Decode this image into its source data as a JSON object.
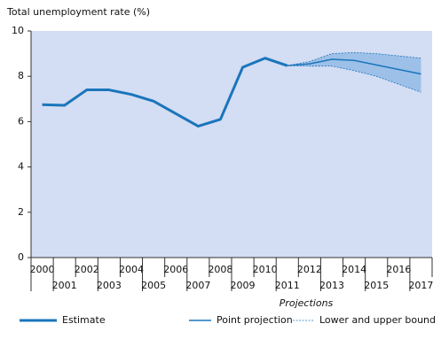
{
  "chart_data": {
    "type": "line",
    "ylabel": "Total unemployment rate (%)",
    "annotation": "Projections",
    "categories": [
      "2000",
      "2001",
      "2002",
      "2003",
      "2004",
      "2005",
      "2006",
      "2007",
      "2008",
      "2009",
      "2010",
      "2011",
      "2012",
      "2013",
      "2014",
      "2015",
      "2016",
      "2017"
    ],
    "series": [
      {
        "name": "Estimate",
        "color": "#1a75bb",
        "style": "thick",
        "values": [
          6.75,
          6.72,
          7.4,
          7.4,
          7.2,
          6.9,
          6.35,
          5.8,
          6.1,
          8.4,
          8.8,
          8.47,
          null,
          null,
          null,
          null,
          null,
          null
        ]
      },
      {
        "name": "Point projection",
        "color": "#1a75bb",
        "style": "thin",
        "values": [
          null,
          null,
          null,
          null,
          null,
          null,
          null,
          null,
          null,
          null,
          null,
          8.47,
          8.55,
          8.75,
          8.7,
          8.5,
          8.3,
          8.1
        ]
      },
      {
        "name": "Lower and upper bound",
        "color": "#1a75bb",
        "style": "dotted",
        "values": [
          null,
          null,
          null,
          null,
          null,
          null,
          null,
          null,
          null,
          null,
          null,
          8.47,
          8.65,
          9.0,
          9.05,
          9.0,
          8.9,
          8.8
        ],
        "lower": [
          null,
          null,
          null,
          null,
          null,
          null,
          null,
          null,
          null,
          null,
          null,
          8.47,
          8.45,
          8.45,
          8.25,
          8.0,
          7.65,
          7.3
        ]
      }
    ],
    "ylim": [
      0,
      10
    ],
    "yticks": [
      0,
      2,
      4,
      6,
      8,
      10
    ],
    "plot_background": "#d3ddf3",
    "fan_color": "#86b4e2"
  }
}
